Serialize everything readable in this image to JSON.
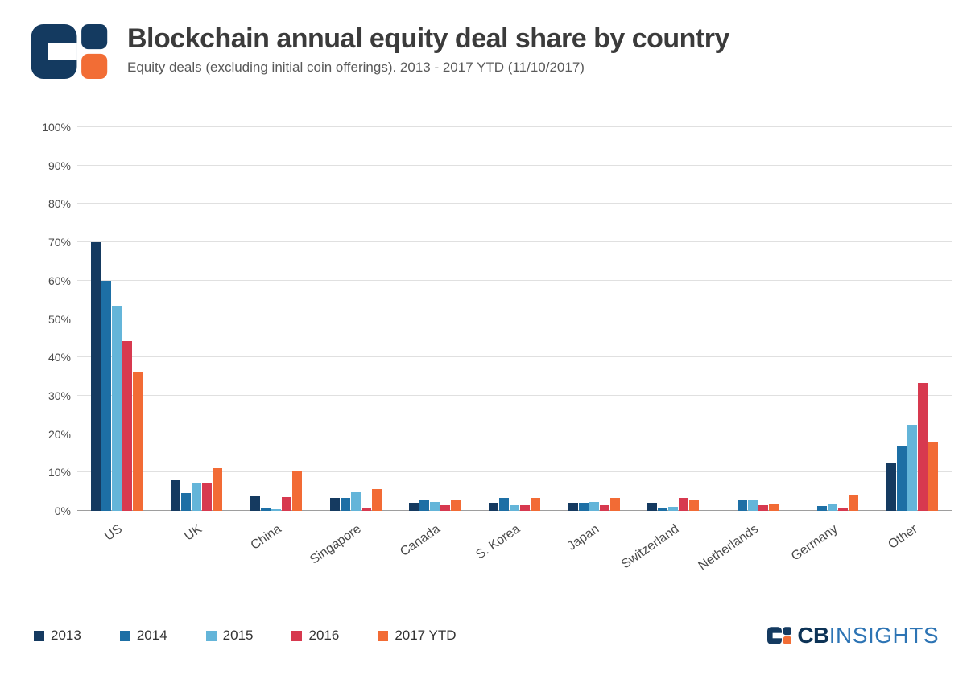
{
  "header": {
    "title": "Blockchain annual equity deal share by country",
    "subtitle": "Equity deals (excluding initial coin offerings). 2013 - 2017 YTD (11/10/2017)"
  },
  "footer": {
    "brand_bold": "CB",
    "brand_rest": "INSIGHTS"
  },
  "brand_colors": {
    "navy": "#143a60",
    "orange": "#f26d35"
  },
  "chart_data": {
    "type": "bar",
    "title": "Blockchain annual equity deal share by country",
    "subtitle": "Equity deals (excluding initial coin offerings). 2013 - 2017 YTD (11/10/2017)",
    "categories": [
      "US",
      "UK",
      "China",
      "Singapore",
      "Canada",
      "S. Korea",
      "Japan",
      "Switzerland",
      "Netherlands",
      "Germany",
      "Other"
    ],
    "series": [
      {
        "name": "2013",
        "color": "#153a60",
        "values": [
          70,
          8,
          4,
          3.4,
          2,
          2,
          2,
          2,
          0,
          0,
          12.3
        ]
      },
      {
        "name": "2014",
        "color": "#1d6fa5",
        "values": [
          60,
          4.7,
          0.6,
          3.4,
          3,
          3.3,
          2.2,
          0.8,
          2.7,
          1.2,
          17
        ]
      },
      {
        "name": "2015",
        "color": "#64b5d9",
        "values": [
          53.5,
          7.3,
          0.5,
          5,
          2.4,
          1.4,
          2.4,
          1,
          2.7,
          1.7,
          22.5
        ]
      },
      {
        "name": "2016",
        "color": "#d7394f",
        "values": [
          44.3,
          7.3,
          3.6,
          0.8,
          1.4,
          1.4,
          1.4,
          3.4,
          1.4,
          0.7,
          33.3
        ]
      },
      {
        "name": "2017 YTD",
        "color": "#f26b35",
        "values": [
          36,
          11.2,
          10.3,
          5.6,
          2.7,
          3.3,
          3.3,
          2.7,
          1.9,
          4.2,
          18.1
        ]
      }
    ],
    "ylim": [
      0,
      100
    ],
    "ytick_step": 10,
    "ytick_labels": [
      "0%",
      "10%",
      "20%",
      "30%",
      "40%",
      "50%",
      "60%",
      "70%",
      "80%",
      "90%",
      "100%"
    ],
    "grid": true,
    "legend_position": "bottom-left"
  }
}
